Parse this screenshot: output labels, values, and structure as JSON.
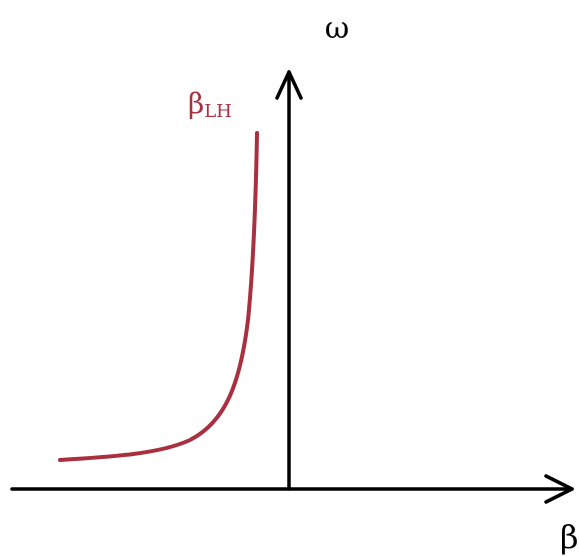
{
  "axes": {
    "y_label": "ω",
    "x_label": "β"
  },
  "curve": {
    "label": {
      "symbol": "β",
      "subscript": "LH"
    }
  }
}
